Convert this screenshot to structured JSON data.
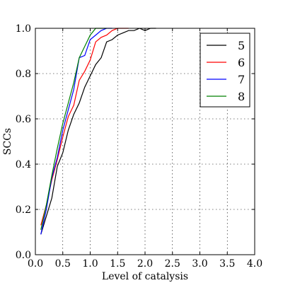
{
  "chart_data": {
    "type": "line",
    "xlabel": "Level of catalysis",
    "ylabel": "SCCs",
    "xlim": [
      0.0,
      4.0
    ],
    "ylim": [
      0.0,
      1.0
    ],
    "xticks": [
      "0.0",
      "0.5",
      "1.0",
      "1.5",
      "2.0",
      "2.5",
      "3.0",
      "3.5",
      "4.0"
    ],
    "yticks": [
      "0.0",
      "0.2",
      "0.4",
      "0.6",
      "0.8",
      "1.0"
    ],
    "grid": true,
    "legend_position": "top-right",
    "series": [
      {
        "name": "5",
        "color": "#000000",
        "x": [
          0.1,
          0.2,
          0.3,
          0.4,
          0.5,
          0.6,
          0.7,
          0.8,
          0.9,
          1.0,
          1.1,
          1.2,
          1.3,
          1.4,
          1.5,
          1.6,
          1.7,
          1.8,
          1.9,
          2.0,
          2.1,
          2.2
        ],
        "y": [
          0.09,
          0.17,
          0.25,
          0.39,
          0.45,
          0.55,
          0.62,
          0.67,
          0.74,
          0.79,
          0.84,
          0.87,
          0.94,
          0.95,
          0.97,
          0.98,
          0.99,
          0.99,
          1.0,
          0.99,
          1.0,
          1.0
        ]
      },
      {
        "name": "6",
        "color": "#ff0000",
        "x": [
          0.1,
          0.2,
          0.3,
          0.4,
          0.5,
          0.6,
          0.7,
          0.8,
          0.9,
          1.0,
          1.1,
          1.2,
          1.3,
          1.4,
          1.5,
          1.6,
          1.7
        ],
        "y": [
          0.13,
          0.22,
          0.33,
          0.42,
          0.52,
          0.61,
          0.66,
          0.77,
          0.81,
          0.86,
          0.94,
          0.96,
          0.97,
          0.99,
          1.0,
          1.0,
          1.0
        ]
      },
      {
        "name": "7",
        "color": "#0000ff",
        "x": [
          0.1,
          0.2,
          0.3,
          0.4,
          0.5,
          0.6,
          0.7,
          0.8,
          0.9,
          1.0,
          1.1,
          1.2,
          1.3,
          1.4
        ],
        "y": [
          0.09,
          0.2,
          0.34,
          0.43,
          0.55,
          0.64,
          0.73,
          0.87,
          0.88,
          0.95,
          0.97,
          0.99,
          1.0,
          1.0
        ]
      },
      {
        "name": "8",
        "color": "#008000",
        "x": [
          0.1,
          0.2,
          0.3,
          0.4,
          0.5,
          0.6,
          0.7,
          0.8,
          0.9,
          1.0,
          1.1,
          1.2,
          1.3
        ],
        "y": [
          0.11,
          0.22,
          0.35,
          0.47,
          0.58,
          0.67,
          0.76,
          0.87,
          0.92,
          0.97,
          1.0,
          1.0,
          1.0
        ]
      }
    ]
  }
}
